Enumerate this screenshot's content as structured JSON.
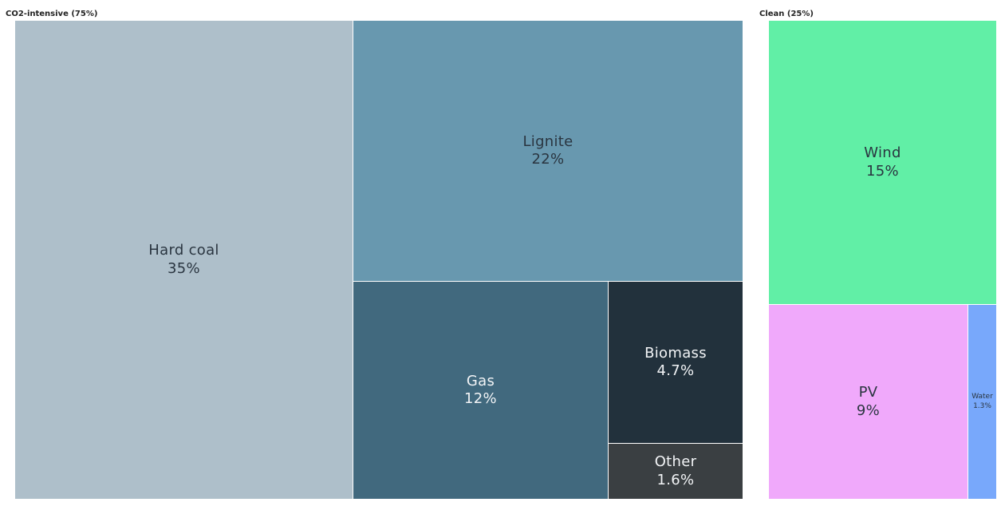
{
  "chart_data": {
    "type": "treemap",
    "groups": [
      {
        "label": "CO2-intensive (75%)",
        "items": [
          {
            "name": "Hard coal",
            "value_label": "35%",
            "value": 35,
            "color": "#aebfca"
          },
          {
            "name": "Lignite",
            "value_label": "22%",
            "value": 22,
            "color": "#6898af"
          },
          {
            "name": "Gas",
            "value_label": "12%",
            "value": 12,
            "color": "#41697e"
          },
          {
            "name": "Biomass",
            "value_label": "4.7%",
            "value": 4.7,
            "color": "#22313c"
          },
          {
            "name": "Other",
            "value_label": "1.6%",
            "value": 1.6,
            "color": "#3a3f42"
          }
        ]
      },
      {
        "label": "Clean (25%)",
        "items": [
          {
            "name": "Wind",
            "value_label": "15%",
            "value": 15,
            "color": "#61efa6"
          },
          {
            "name": "PV",
            "value_label": "9%",
            "value": 9,
            "color": "#f0a9fb"
          },
          {
            "name": "Water",
            "value_label": "1.3%",
            "value": 1.3,
            "color": "#78a8fb"
          }
        ]
      }
    ]
  }
}
